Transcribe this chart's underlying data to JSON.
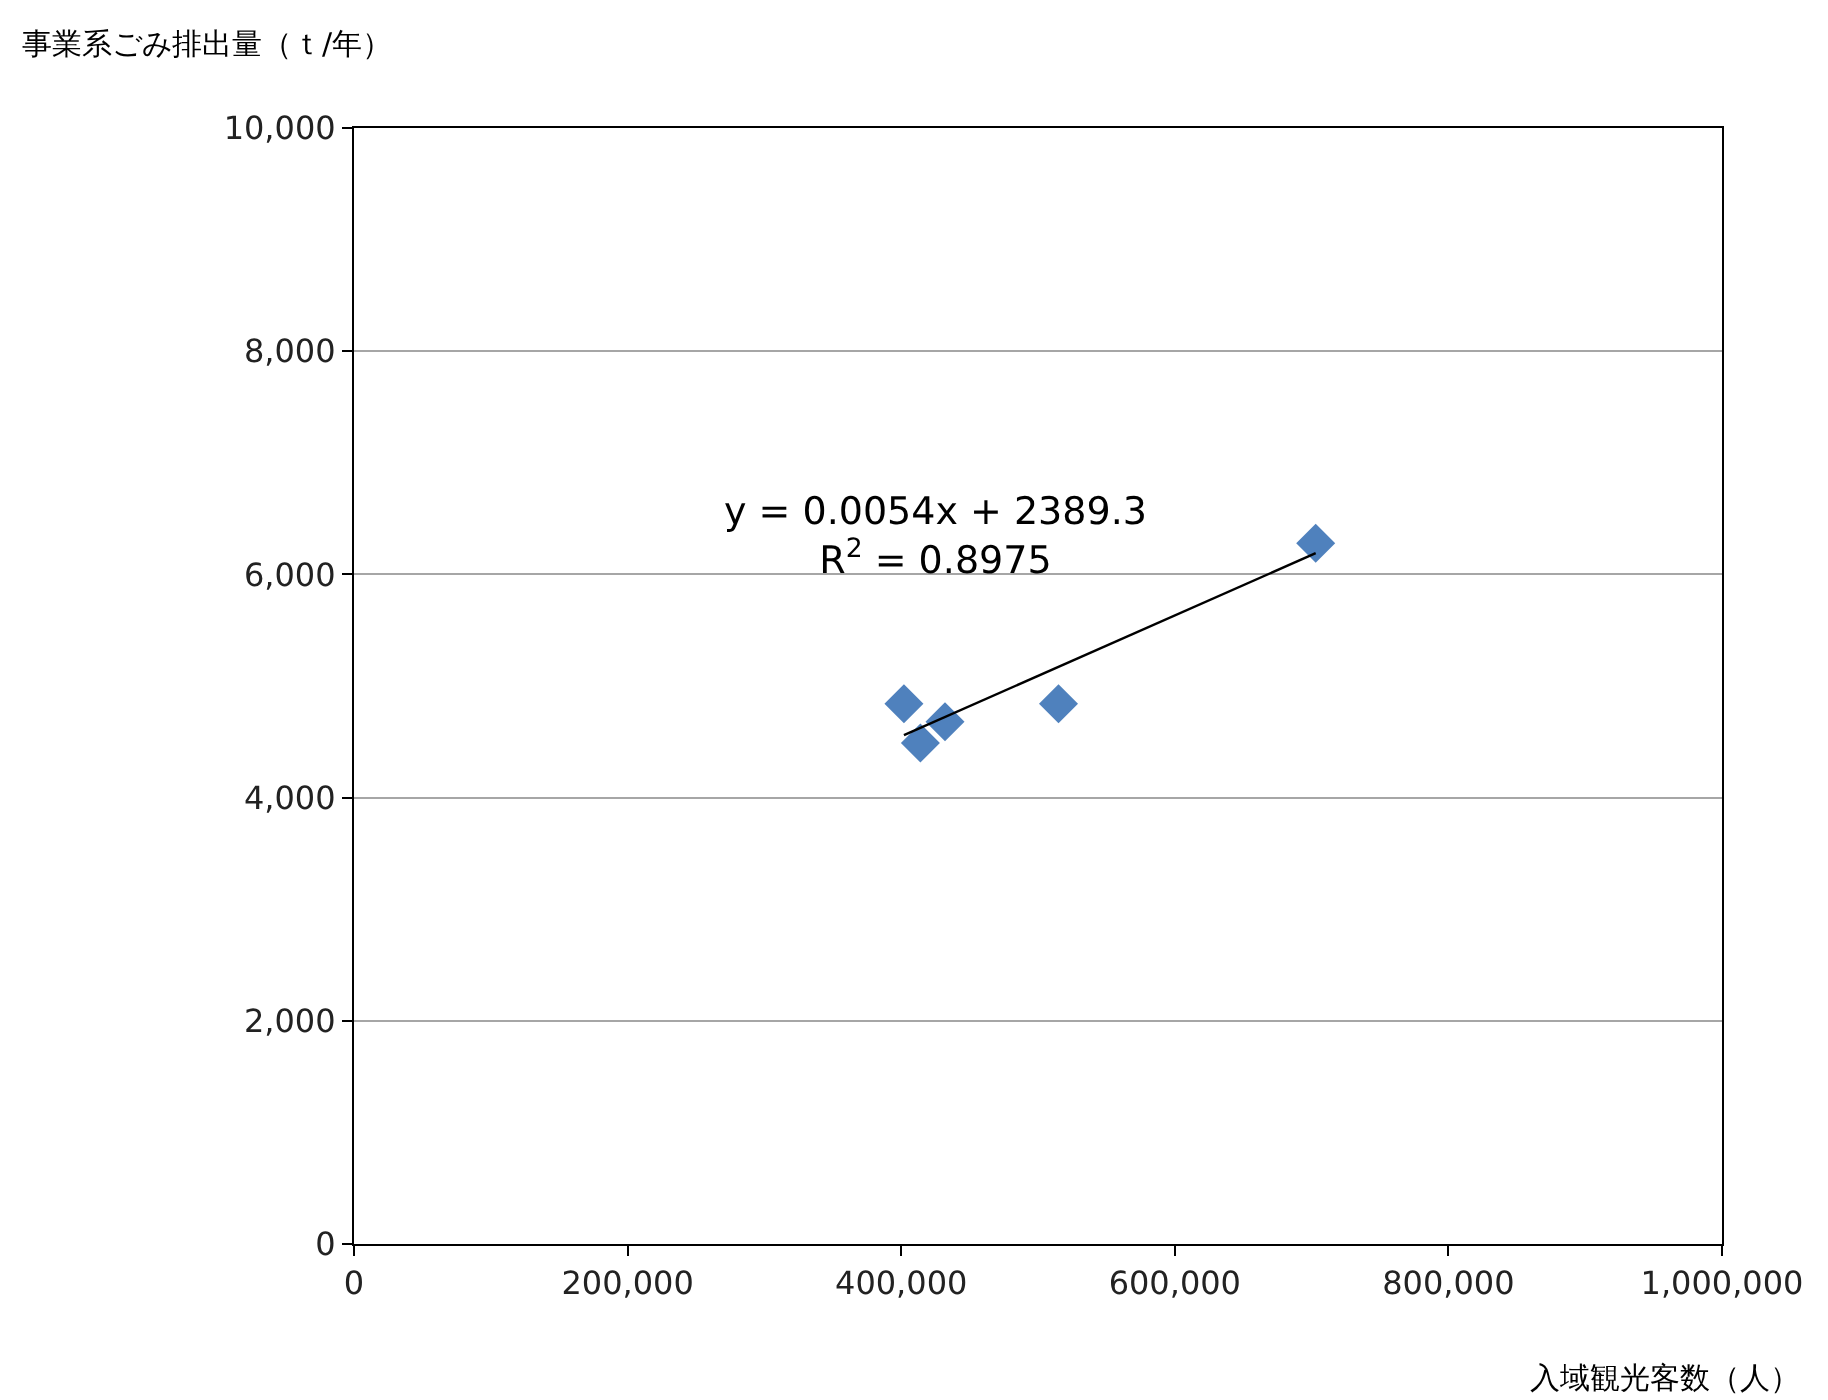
{
  "chart_data": {
    "type": "scatter",
    "xlabel": "入域観光客数（人）",
    "ylabel": "事業系ごみ排出量（ｔ/年）",
    "series": [
      {
        "color": "#4f81bd",
        "marker": "diamond",
        "x": [
          402000,
          414000,
          432000,
          515000,
          703000
        ],
        "values": [
          4840,
          4490,
          4680,
          4840,
          6280
        ]
      },
      {
        "type": "line",
        "color": "#000000",
        "marker": "none",
        "line_style": "solid",
        "x": [
          402000,
          703000
        ],
        "values": [
          4560,
          6190
        ]
      }
    ],
    "annotations": [
      "y = 0.0054x + 2389.3\nR$^{2}$ = 0.8975"
    ],
    "xlim": [
      0,
      1000000
    ],
    "ylim": [
      0,
      10000
    ],
    "xticks": [
      0,
      {
        "value": 200000,
        "label": "200,000"
      },
      {
        "value": 400000,
        "label": "400,000"
      },
      {
        "value": 600000,
        "label": "600,000"
      },
      {
        "value": 800000,
        "label": "800,000"
      },
      {
        "value": 1000000,
        "label": "1,000,000"
      }
    ],
    "yticks": [
      0,
      {
        "value": 2000,
        "label": "2,000"
      },
      {
        "value": 4000,
        "label": "4,000"
      },
      {
        "value": 6000,
        "label": "6,000"
      },
      {
        "value": 8000,
        "label": "8,000"
      },
      {
        "value": 10000,
        "label": "10,000"
      }
    ],
    "grid": "y"
  }
}
